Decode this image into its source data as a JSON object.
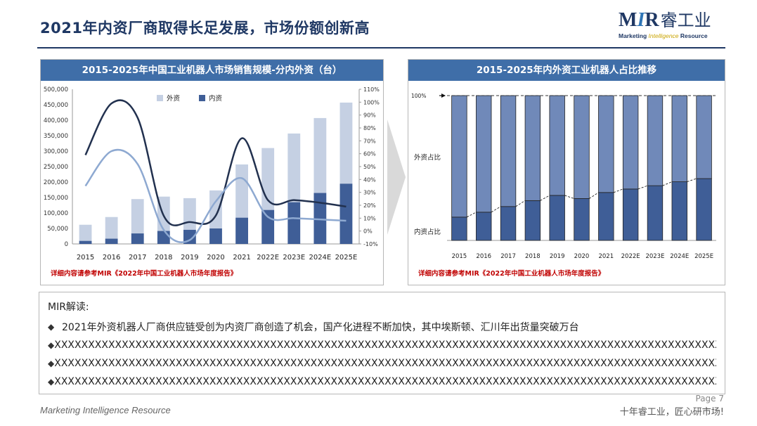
{
  "page": {
    "title": "2021年内资厂商取得长足发展，市场份额创新高",
    "logo_main_prefix": "M",
    "logo_main_i": "I",
    "logo_main_suffix": "R",
    "logo_main_cn": "睿工业",
    "logo_sub_a": "Marketing ",
    "logo_sub_b": "Intelligence",
    "logo_sub_c": " Resource",
    "footer_left": "Marketing Intelligence Resource",
    "footer_right": "十年睿工业，匠心研市场!",
    "page_no": "Page 7",
    "colors": {
      "brand": "#1f3864",
      "panel_head": "#3f6ea8",
      "foreign": "#c5d0e3",
      "domestic": "#3f5e97",
      "note": "#c00000"
    }
  },
  "left_panel": {
    "title": "2015-2025年中国工业机器人市场销售规模-分内外资（台）",
    "note": "详细内容请参考MIR《2022年中国工业机器人市场年度报告》"
  },
  "right_panel": {
    "title": "2015-2025年内外资工业机器人占比推移",
    "note": "详细内容请参考MIR《2022年中国工业机器人市场年度报告》"
  },
  "interpretation": {
    "title": "MIR解读:",
    "bullets": [
      "2021年外资机器人厂商供应链受创为内资厂商创造了机会，国产化进程不断加快，其中埃斯顿、汇川年出货量突破万台",
      "XXXXXXXXXXXXXXXXXXXXXXXXXXXXXXXXXXXXXXXXXXXXXXXXXXXXXXXXXXXXXXXXXXXXXXXXXXXXXXXXXXXXXXXXXXXXXXXXXXX",
      "XXXXXXXXXXXXXXXXXXXXXXXXXXXXXXXXXXXXXXXXXXXXXXXXXXXXXXXXXXXXXXXXXXXXXXXXXXXXXXXXXXXXXXXXXXXXXXXXXXX",
      "XXXXXXXXXXXXXXXXXXXXXXXXXXXXXXXXXXXXXXXXXXXXXXXXXXXXXXXXXXXXXXXXXXXXXXXXXXXXXXXXXXXXXXXXXXXXXXXXXXX"
    ]
  },
  "chart_data": [
    {
      "type": "bar",
      "stacked": true,
      "categories": [
        "2015",
        "2016",
        "2017",
        "2018",
        "2019",
        "2020",
        "2021",
        "2022E",
        "2023E",
        "2024E",
        "2025E"
      ],
      "series": [
        {
          "name": "内资",
          "color": "#3f5e97",
          "values": [
            10000,
            17000,
            34000,
            42000,
            46000,
            50000,
            85000,
            110000,
            135000,
            165000,
            195000
          ]
        },
        {
          "name": "外资",
          "color": "#c5d0e3",
          "values": [
            52000,
            70000,
            111000,
            111000,
            102000,
            123000,
            172000,
            200000,
            222000,
            242000,
            262000
          ]
        }
      ],
      "secondary_lines": [
        {
          "color": "#22314f",
          "values": [
            59,
            99,
            88,
            12,
            7,
            12,
            72,
            24,
            24,
            22,
            19
          ]
        },
        {
          "color": "#8ea9d1",
          "values": [
            35,
            62,
            52,
            1,
            -7,
            23,
            41,
            11,
            10,
            9,
            8
          ]
        }
      ],
      "ylim": [
        0,
        500000
      ],
      "yticks": [
        "0",
        "50,000",
        "100,000",
        "150,000",
        "200,000",
        "250,000",
        "300,000",
        "350,000",
        "400,000",
        "450,000",
        "500,000"
      ],
      "y2lim": [
        -10,
        110
      ],
      "y2ticks": [
        "-10%",
        "0%",
        "10%",
        "20%",
        "30%",
        "40%",
        "50%",
        "60%",
        "70%",
        "80%",
        "90%",
        "100%",
        "110%"
      ],
      "legend": [
        "外资",
        "内资"
      ],
      "legend_position": "top"
    },
    {
      "type": "bar",
      "stacked": true,
      "percent": true,
      "categories": [
        "2015",
        "2016",
        "2017",
        "2018",
        "2019",
        "2020",
        "2021",
        "2022E",
        "2023E",
        "2024E",
        "2025E"
      ],
      "series": [
        {
          "name": "内资占比",
          "color": "#3f5e97",
          "values": [
            16.1,
            19.5,
            23.4,
            27.5,
            31.1,
            28.9,
            33.1,
            35.5,
            37.8,
            40.5,
            42.7
          ]
        },
        {
          "name": "外资占比",
          "color": "#7089b9",
          "values": [
            83.9,
            80.5,
            76.6,
            72.5,
            68.9,
            71.1,
            66.9,
            64.5,
            62.2,
            59.5,
            57.3
          ]
        }
      ],
      "labels": {
        "top": "100%",
        "foreign": "外资占比",
        "domestic": "内资占比"
      }
    }
  ]
}
